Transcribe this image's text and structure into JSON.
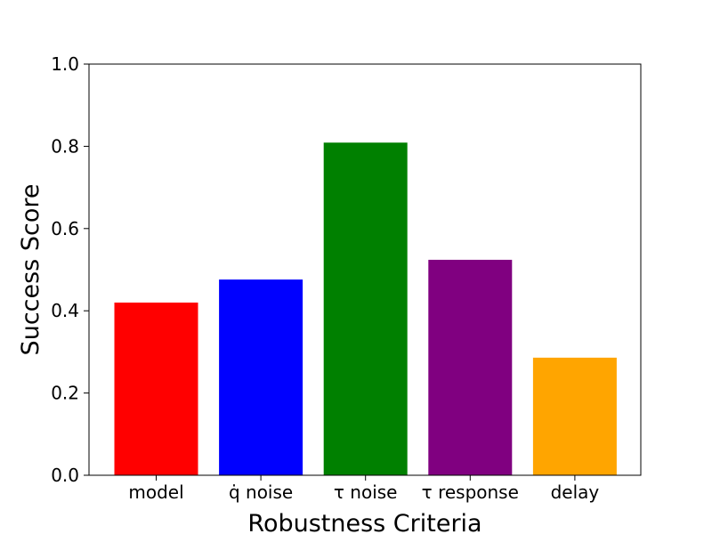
{
  "chart_data": {
    "type": "bar",
    "categories": [
      "model",
      "q̇ noise",
      "τ noise",
      "τ response",
      "delay"
    ],
    "values": [
      0.42,
      0.476,
      0.809,
      0.524,
      0.286
    ],
    "colors": [
      "#ff0000",
      "#0000ff",
      "#008000",
      "#800080",
      "#ffa500"
    ],
    "title": "",
    "xlabel": "Robustness Criteria",
    "ylabel": "Success Score",
    "ylim": [
      0,
      1.0
    ],
    "yticks": [
      "0.0",
      "0.2",
      "0.4",
      "0.6",
      "0.8",
      "1.0"
    ],
    "grid": false
  }
}
